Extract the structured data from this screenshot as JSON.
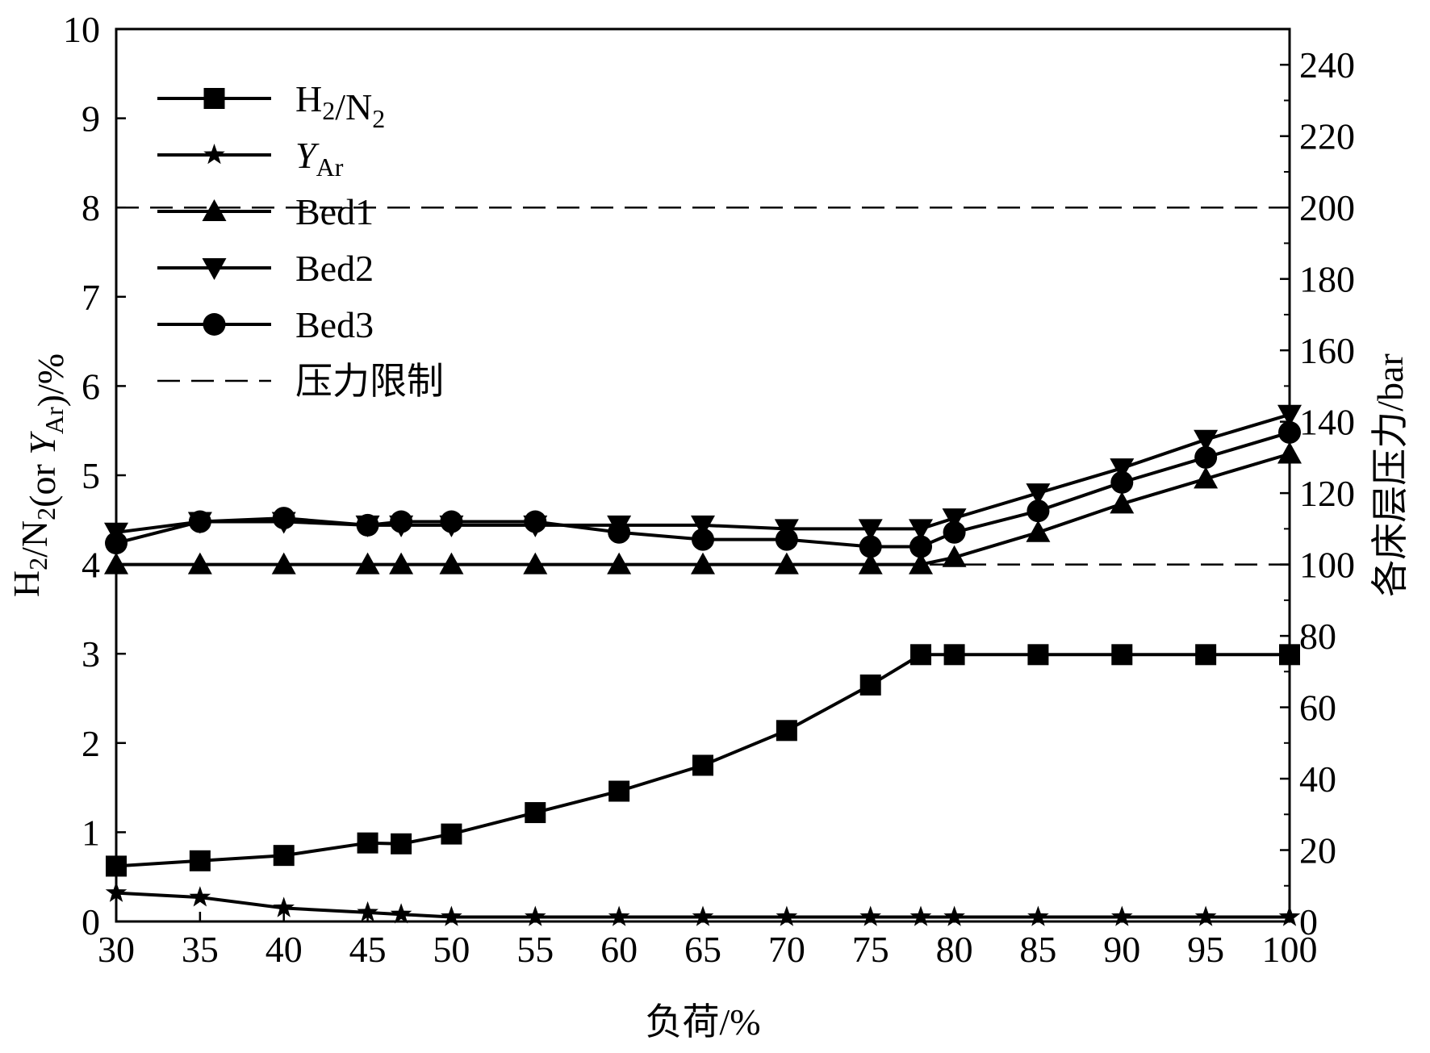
{
  "chart_data": {
    "type": "line",
    "xlabel": "负荷/%",
    "ylabel_left": {
      "parts": [
        "H",
        "2",
        "/N",
        "2",
        "(or ",
        "Y",
        "Ar",
        ")/%"
      ]
    },
    "ylabel_right": "各床层压力/bar",
    "xlim": [
      30,
      100
    ],
    "ylim_left": [
      0,
      10
    ],
    "ylim_right": [
      0,
      250
    ],
    "x_ticks": [
      30,
      35,
      40,
      45,
      50,
      55,
      60,
      65,
      70,
      75,
      80,
      85,
      90,
      95,
      100
    ],
    "y_left_ticks": [
      0,
      1,
      2,
      3,
      4,
      5,
      6,
      7,
      8,
      9,
      10
    ],
    "y_right_ticks": [
      0,
      20,
      40,
      60,
      80,
      100,
      120,
      140,
      160,
      180,
      200,
      220,
      240
    ],
    "grid": false,
    "legend_position": "top-left",
    "series": [
      {
        "key": "h2n2",
        "name": "H2/N2",
        "axis": "left",
        "marker": "square",
        "x": [
          30,
          35,
          40,
          45,
          47,
          50,
          55,
          60,
          65,
          70,
          75,
          78,
          80,
          85,
          90,
          95,
          100
        ],
        "y": [
          0.62,
          0.68,
          0.74,
          0.88,
          0.87,
          0.98,
          1.22,
          1.46,
          1.75,
          2.14,
          2.65,
          2.99,
          2.99,
          2.99,
          2.99,
          2.99,
          2.99
        ]
      },
      {
        "key": "yar",
        "name": "YAr",
        "axis": "left",
        "marker": "star",
        "x": [
          30,
          35,
          40,
          45,
          47,
          50,
          55,
          60,
          65,
          70,
          75,
          78,
          80,
          85,
          90,
          95,
          100
        ],
        "y": [
          0.32,
          0.27,
          0.15,
          0.1,
          0.08,
          0.05,
          0.05,
          0.05,
          0.05,
          0.05,
          0.05,
          0.05,
          0.05,
          0.05,
          0.05,
          0.05,
          0.05
        ]
      },
      {
        "key": "bed1",
        "name": "Bed1",
        "axis": "right",
        "marker": "triangle-up",
        "x": [
          30,
          35,
          40,
          45,
          47,
          50,
          55,
          60,
          65,
          70,
          75,
          78,
          80,
          85,
          90,
          95,
          100
        ],
        "y": [
          100,
          100,
          100,
          100,
          100,
          100,
          100,
          100,
          100,
          100,
          100,
          100,
          102,
          109,
          117,
          124,
          131
        ]
      },
      {
        "key": "bed2",
        "name": "Bed2",
        "axis": "right",
        "marker": "triangle-down",
        "x": [
          30,
          35,
          40,
          45,
          47,
          50,
          55,
          60,
          65,
          70,
          75,
          78,
          80,
          85,
          90,
          95,
          100
        ],
        "y": [
          109,
          112,
          112,
          111,
          111,
          111,
          111,
          111,
          111,
          110,
          110,
          110,
          113,
          120,
          127,
          135,
          142
        ]
      },
      {
        "key": "bed3",
        "name": "Bed3",
        "axis": "right",
        "marker": "circle",
        "x": [
          30,
          35,
          40,
          45,
          47,
          50,
          55,
          60,
          65,
          70,
          75,
          78,
          80,
          85,
          90,
          95,
          100
        ],
        "y": [
          106,
          112,
          113,
          111,
          112,
          112,
          112,
          109,
          107,
          107,
          105,
          105,
          109,
          115,
          123,
          130,
          137
        ]
      }
    ],
    "pressure_limits": {
      "name": "压力限制",
      "axis": "right",
      "y": [
        200,
        100
      ],
      "style": "dashed"
    },
    "legend": [
      {
        "key": "h2n2",
        "parts": [
          "H",
          "2",
          "/N",
          "2"
        ]
      },
      {
        "key": "yar",
        "parts": [
          "Y",
          "Ar"
        ]
      },
      {
        "key": "bed1",
        "parts": [
          "Bed1"
        ]
      },
      {
        "key": "bed2",
        "parts": [
          "Bed2"
        ]
      },
      {
        "key": "bed3",
        "parts": [
          "Bed3"
        ]
      },
      {
        "key": "limit",
        "parts": [
          "压力限制"
        ]
      }
    ]
  }
}
